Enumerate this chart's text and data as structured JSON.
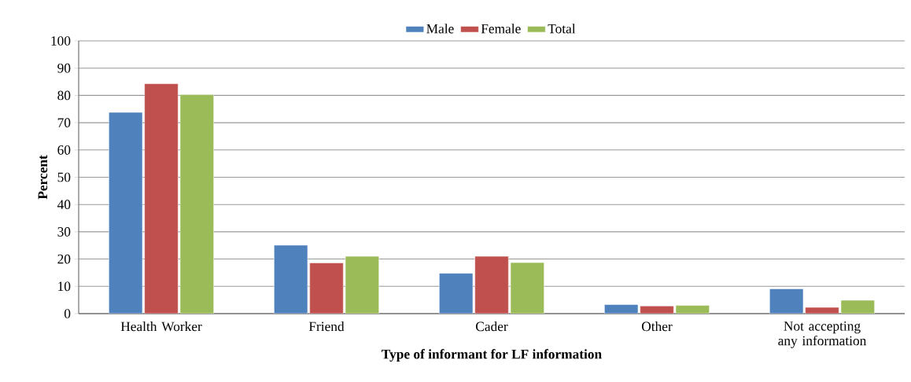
{
  "chart_data": {
    "type": "bar",
    "xlabel": "Type of informant for LF information",
    "ylabel": "Percent",
    "categories": [
      "Health Worker",
      "Friend",
      "Cader",
      "Other",
      "Not accepting any information"
    ],
    "series": [
      {
        "name": "Male",
        "color": "#4f81bd",
        "values": [
          73.8,
          25.1,
          14.8,
          3.3,
          9.1
        ]
      },
      {
        "name": "Female",
        "color": "#c0504d",
        "values": [
          84.3,
          18.6,
          21.0,
          2.8,
          2.3
        ]
      },
      {
        "name": "Total",
        "color": "#9bbb59",
        "values": [
          80.3,
          21.0,
          18.7,
          3.0,
          4.9
        ]
      }
    ],
    "ylim": [
      0,
      100
    ],
    "yticks": [
      0,
      10,
      20,
      30,
      40,
      50,
      60,
      70,
      80,
      90,
      100
    ],
    "grid": "y",
    "legend": "top"
  }
}
